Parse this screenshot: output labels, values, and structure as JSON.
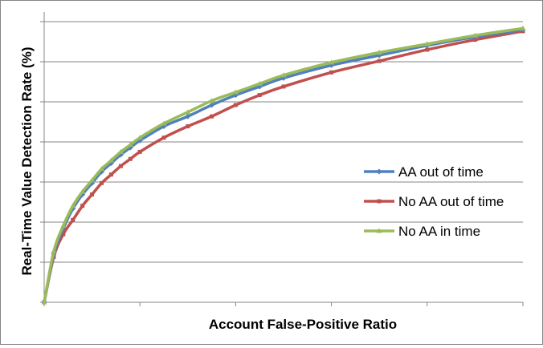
{
  "chart_data": {
    "type": "line",
    "title": "",
    "xlabel": "Account False-Positive Ratio",
    "ylabel": "Real-Time Value Detection Rate (%)",
    "xlim": [
      0,
      1
    ],
    "ylim": [
      0,
      1
    ],
    "x_tick_count": 5,
    "y_tick_count": 6,
    "x_tick_labels": [],
    "y_tick_labels": [],
    "grid": "horizontal",
    "legend_position": "right",
    "series": [
      {
        "name": "AA out of time",
        "color": "#4F81BD",
        "marker": "diamond",
        "points": [
          [
            0.0,
            0.0
          ],
          [
            0.02,
            0.17
          ],
          [
            0.04,
            0.26
          ],
          [
            0.06,
            0.33
          ],
          [
            0.08,
            0.38
          ],
          [
            0.1,
            0.42
          ],
          [
            0.12,
            0.46
          ],
          [
            0.14,
            0.49
          ],
          [
            0.16,
            0.52
          ],
          [
            0.18,
            0.545
          ],
          [
            0.2,
            0.57
          ],
          [
            0.25,
            0.62
          ],
          [
            0.3,
            0.655
          ],
          [
            0.35,
            0.695
          ],
          [
            0.4,
            0.73
          ],
          [
            0.45,
            0.76
          ],
          [
            0.5,
            0.79
          ],
          [
            0.6,
            0.835
          ],
          [
            0.7,
            0.87
          ],
          [
            0.8,
            0.905
          ],
          [
            0.9,
            0.935
          ],
          [
            1.0,
            0.96
          ]
        ]
      },
      {
        "name": "No AA out of time",
        "color": "#C0504D",
        "marker": "square",
        "points": [
          [
            0.0,
            0.0
          ],
          [
            0.02,
            0.16
          ],
          [
            0.04,
            0.24
          ],
          [
            0.06,
            0.29
          ],
          [
            0.08,
            0.34
          ],
          [
            0.1,
            0.38
          ],
          [
            0.12,
            0.42
          ],
          [
            0.14,
            0.45
          ],
          [
            0.16,
            0.48
          ],
          [
            0.18,
            0.505
          ],
          [
            0.2,
            0.53
          ],
          [
            0.25,
            0.58
          ],
          [
            0.3,
            0.62
          ],
          [
            0.35,
            0.655
          ],
          [
            0.4,
            0.695
          ],
          [
            0.45,
            0.73
          ],
          [
            0.5,
            0.76
          ],
          [
            0.6,
            0.81
          ],
          [
            0.7,
            0.85
          ],
          [
            0.8,
            0.89
          ],
          [
            0.9,
            0.925
          ],
          [
            1.0,
            0.955
          ]
        ]
      },
      {
        "name": "No AA in time",
        "color": "#9BBB59",
        "marker": "triangle",
        "points": [
          [
            0.0,
            0.0
          ],
          [
            0.02,
            0.18
          ],
          [
            0.04,
            0.27
          ],
          [
            0.06,
            0.34
          ],
          [
            0.08,
            0.39
          ],
          [
            0.1,
            0.43
          ],
          [
            0.12,
            0.47
          ],
          [
            0.14,
            0.5
          ],
          [
            0.16,
            0.53
          ],
          [
            0.18,
            0.555
          ],
          [
            0.2,
            0.58
          ],
          [
            0.25,
            0.63
          ],
          [
            0.3,
            0.67
          ],
          [
            0.35,
            0.71
          ],
          [
            0.4,
            0.74
          ],
          [
            0.45,
            0.77
          ],
          [
            0.5,
            0.8
          ],
          [
            0.6,
            0.845
          ],
          [
            0.7,
            0.88
          ],
          [
            0.8,
            0.91
          ],
          [
            0.9,
            0.94
          ],
          [
            1.0,
            0.965
          ]
        ]
      }
    ]
  }
}
